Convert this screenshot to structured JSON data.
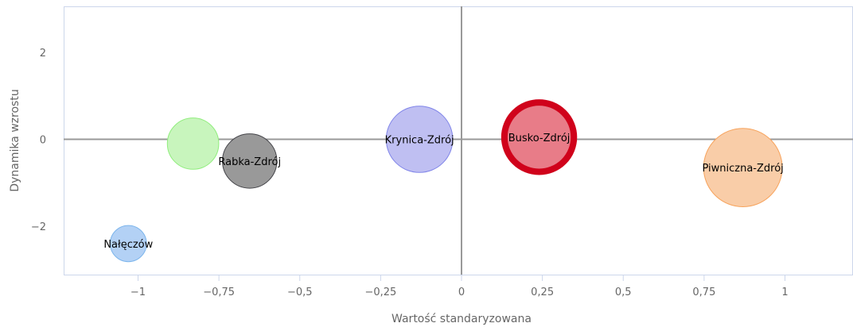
{
  "chart_data": {
    "type": "bubble",
    "xlabel": "Wartość standaryzowana",
    "ylabel": "Dynamika wzrostu",
    "xlim": [
      -1.25,
      1.2
    ],
    "ylim": [
      -3.1,
      3.1
    ],
    "x_ticks": [
      {
        "value": -1,
        "label": "−1"
      },
      {
        "value": -0.75,
        "label": "−0,75"
      },
      {
        "value": -0.5,
        "label": "−0,5"
      },
      {
        "value": -0.25,
        "label": "−0,25"
      },
      {
        "value": 0,
        "label": "0"
      },
      {
        "value": 0.25,
        "label": "0,25"
      },
      {
        "value": 0.5,
        "label": "0,5"
      },
      {
        "value": 0.75,
        "label": "0,75"
      },
      {
        "value": 1,
        "label": "1"
      }
    ],
    "y_ticks": [
      {
        "value": 2,
        "label": "2"
      },
      {
        "value": 0,
        "label": "0"
      },
      {
        "value": -2,
        "label": "−2"
      }
    ],
    "grid": false,
    "points": [
      {
        "label": "Nałęczów",
        "x": -1.03,
        "y": -2.4,
        "size": 0.6,
        "fill": "#b3d1f5",
        "stroke": "#7cb5ec",
        "highlight": false
      },
      {
        "label": "",
        "x": -0.83,
        "y": -0.1,
        "size": 0.85,
        "fill": "#c8f5bd",
        "stroke": "#90ed7d",
        "highlight": false
      },
      {
        "label": "Rabka-Zdrój",
        "x": -0.655,
        "y": -0.5,
        "size": 0.9,
        "fill": "#999999",
        "stroke": "#434348",
        "highlight": false
      },
      {
        "label": "Krynica-Zdrój",
        "x": -0.13,
        "y": 0.0,
        "size": 1.1,
        "fill": "#bfbff2",
        "stroke": "#8085e9",
        "highlight": false
      },
      {
        "label": "Busko-Zdrój",
        "x": 0.24,
        "y": 0.05,
        "size": 1.15,
        "fill": "#e87c88",
        "stroke": "#d0021b",
        "highlight": true
      },
      {
        "label": "Piwniczna-Zdrój",
        "x": 0.87,
        "y": -0.65,
        "size": 1.3,
        "fill": "#f9cda8",
        "stroke": "#f7a35c",
        "highlight": false
      }
    ]
  }
}
